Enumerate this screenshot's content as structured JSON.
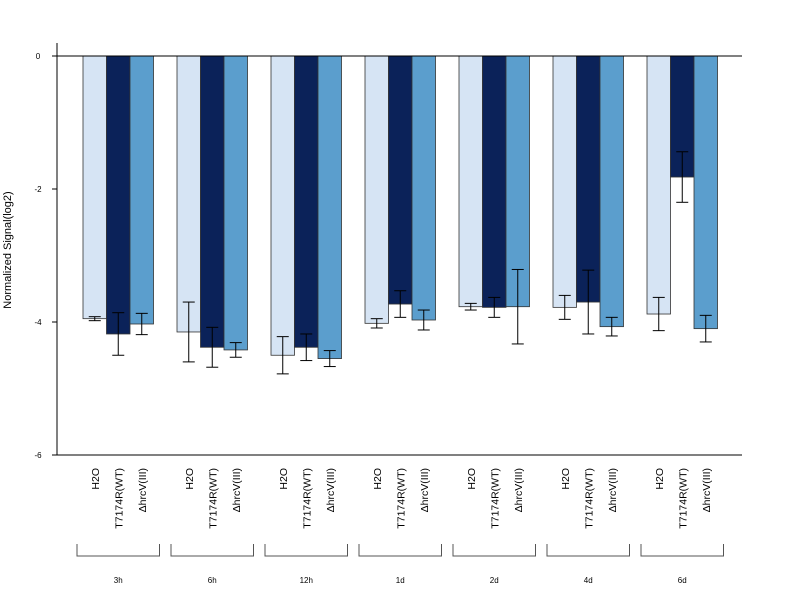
{
  "chart_data": {
    "type": "bar",
    "ylabel": "Normalized Signal(log2)",
    "xlabel": "",
    "ylim": [
      -6,
      0.2
    ],
    "yticks": [
      0,
      -2,
      -4,
      -6
    ],
    "ytick_labels": [
      "0",
      "-2",
      "-4",
      "-6"
    ],
    "bar_labels": [
      "H2O",
      "T7174R(WT)",
      "ΔhrcV(III)"
    ],
    "groups": [
      "3h",
      "6h",
      "12h",
      "1d",
      "2d",
      "4d",
      "6d"
    ],
    "series": [
      {
        "name": "H2O",
        "color": "#d6e4f4",
        "values": [
          -3.95,
          -4.15,
          -4.5,
          -4.02,
          -3.77,
          -3.78,
          -3.88
        ],
        "errors": [
          0.03,
          0.45,
          0.28,
          0.07,
          0.05,
          0.18,
          0.25
        ]
      },
      {
        "name": "T7174R(WT)",
        "color": "#0b2259",
        "values": [
          -4.18,
          -4.38,
          -4.38,
          -3.73,
          -3.78,
          -3.7,
          -1.82
        ],
        "errors": [
          0.32,
          0.3,
          0.2,
          0.2,
          0.15,
          0.48,
          0.38
        ]
      },
      {
        "name": "ΔhrcV(III)",
        "color": "#5b9ecd",
        "values": [
          -4.03,
          -4.42,
          -4.55,
          -3.97,
          -3.77,
          -4.07,
          -4.1
        ],
        "errors": [
          0.16,
          0.11,
          0.12,
          0.15,
          0.56,
          0.14,
          0.2
        ]
      }
    ],
    "grid": false,
    "legend": "none"
  }
}
